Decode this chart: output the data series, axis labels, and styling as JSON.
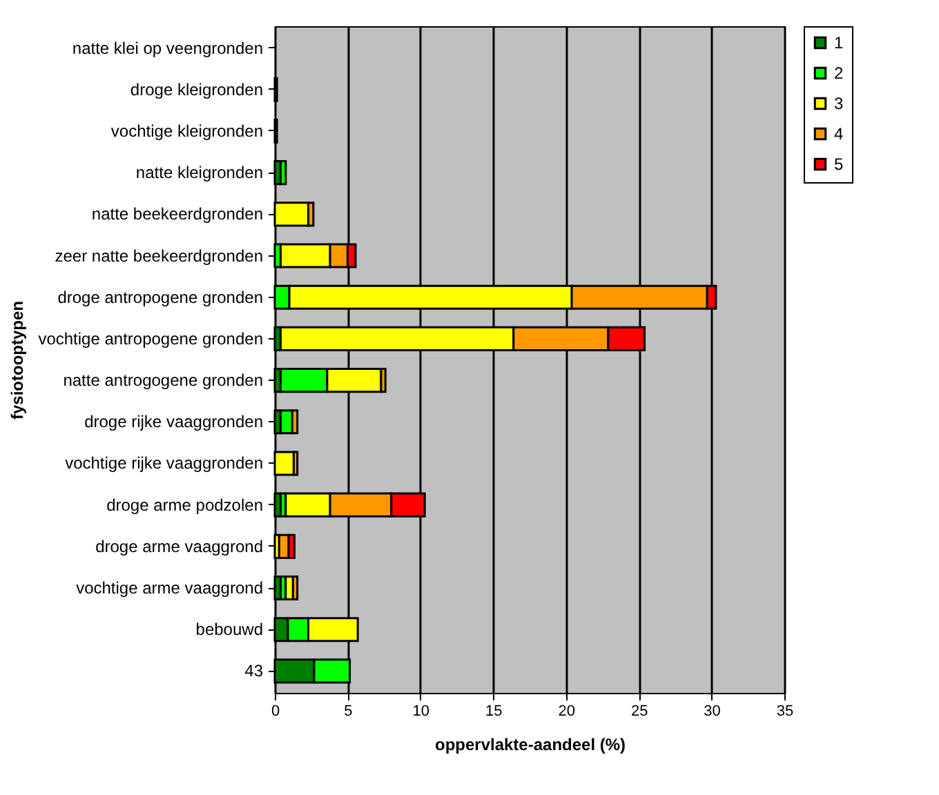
{
  "chart_data": {
    "type": "bar",
    "orientation": "horizontal",
    "stacked": true,
    "xlabel": "oppervlakte-aandeel (%)",
    "ylabel": "fysiotooptypen",
    "categories": [
      "natte klei op veengronden",
      "droge kleigronden",
      "vochtige kleigronden",
      "natte kleigronden",
      "natte beekeerdgronden",
      "zeer natte beekeerdgronden",
      "droge antropogene gronden",
      "vochtige antropogene gronden",
      "natte antrogogene gronden",
      "droge rijke vaaggronden",
      "vochtige rijke vaaggronden",
      "droge arme podzolen",
      "droge arme vaaggrond",
      "vochtige arme vaaggrond",
      "bebouwd",
      "43"
    ],
    "series": [
      {
        "name": "1",
        "color": "#008000",
        "values": [
          null,
          0.15,
          0.15,
          0.4,
          null,
          null,
          null,
          0.4,
          0.4,
          0.4,
          null,
          0.4,
          null,
          0.4,
          0.9,
          2.7
        ]
      },
      {
        "name": "2",
        "color": "#00ff00",
        "values": [
          null,
          null,
          null,
          0.35,
          null,
          0.4,
          1.0,
          null,
          3.2,
          0.8,
          null,
          0.35,
          null,
          0.35,
          1.4,
          2.45
        ]
      },
      {
        "name": "3",
        "color": "#ffff00",
        "values": [
          null,
          null,
          null,
          null,
          2.3,
          3.4,
          19.4,
          16.0,
          3.7,
          null,
          1.3,
          3.05,
          0.3,
          0.5,
          3.4,
          null
        ]
      },
      {
        "name": "4",
        "color": "#ff9900",
        "values": [
          null,
          null,
          null,
          null,
          0.35,
          1.2,
          9.3,
          6.5,
          0.3,
          0.35,
          0.25,
          4.2,
          0.65,
          0.3,
          null,
          null
        ]
      },
      {
        "name": "5",
        "color": "#ff0000",
        "values": [
          null,
          null,
          null,
          null,
          null,
          0.55,
          0.6,
          2.5,
          null,
          null,
          null,
          2.3,
          0.4,
          null,
          null,
          null
        ]
      }
    ],
    "xlim": [
      0,
      35
    ],
    "xticks": [
      0,
      5,
      10,
      15,
      20,
      25,
      30,
      35
    ],
    "grid": "x",
    "legend": "right"
  }
}
